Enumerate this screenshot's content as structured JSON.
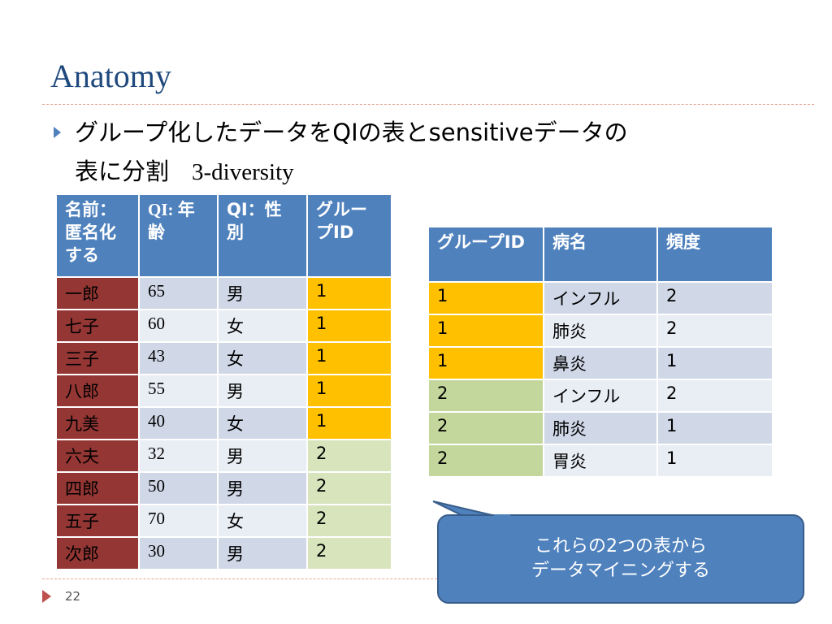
{
  "title": "Anatomy",
  "bullet": {
    "line1": "グループ化したデータをQIの表とsensitiveデータの",
    "line2_jp": "表に分割",
    "line2_en": "3-diversity"
  },
  "left_table": {
    "headers": [
      "名前：匿名化する",
      "QI: 年齢",
      "QI：性別",
      "グループID"
    ],
    "rows": [
      [
        "一郎",
        "65",
        "男",
        "1"
      ],
      [
        "七子",
        "60",
        "女",
        "1"
      ],
      [
        "三子",
        "43",
        "女",
        "1"
      ],
      [
        "八郎",
        "55",
        "男",
        "1"
      ],
      [
        "九美",
        "40",
        "女",
        "1"
      ],
      [
        "六夫",
        "32",
        "男",
        "2"
      ],
      [
        "四郎",
        "50",
        "男",
        "2"
      ],
      [
        "五子",
        "70",
        "女",
        "2"
      ],
      [
        "次郎",
        "30",
        "男",
        "2"
      ]
    ]
  },
  "right_table": {
    "headers": [
      "グループID",
      "病名",
      "頻度"
    ],
    "rows": [
      [
        "1",
        "インフル",
        "2"
      ],
      [
        "1",
        "肺炎",
        "2"
      ],
      [
        "1",
        "鼻炎",
        "1"
      ],
      [
        "2",
        "インフル",
        "2"
      ],
      [
        "2",
        "肺炎",
        "1"
      ],
      [
        "2",
        "胃炎",
        "1"
      ]
    ]
  },
  "callout": {
    "line1": "これらの2つの表から",
    "line2": "データマイニングする"
  },
  "page_number": "22",
  "colors": {
    "header": "#4f81bd",
    "name_col": "#943634",
    "group1": "#ffc000",
    "group2": "#d7e4bc"
  }
}
